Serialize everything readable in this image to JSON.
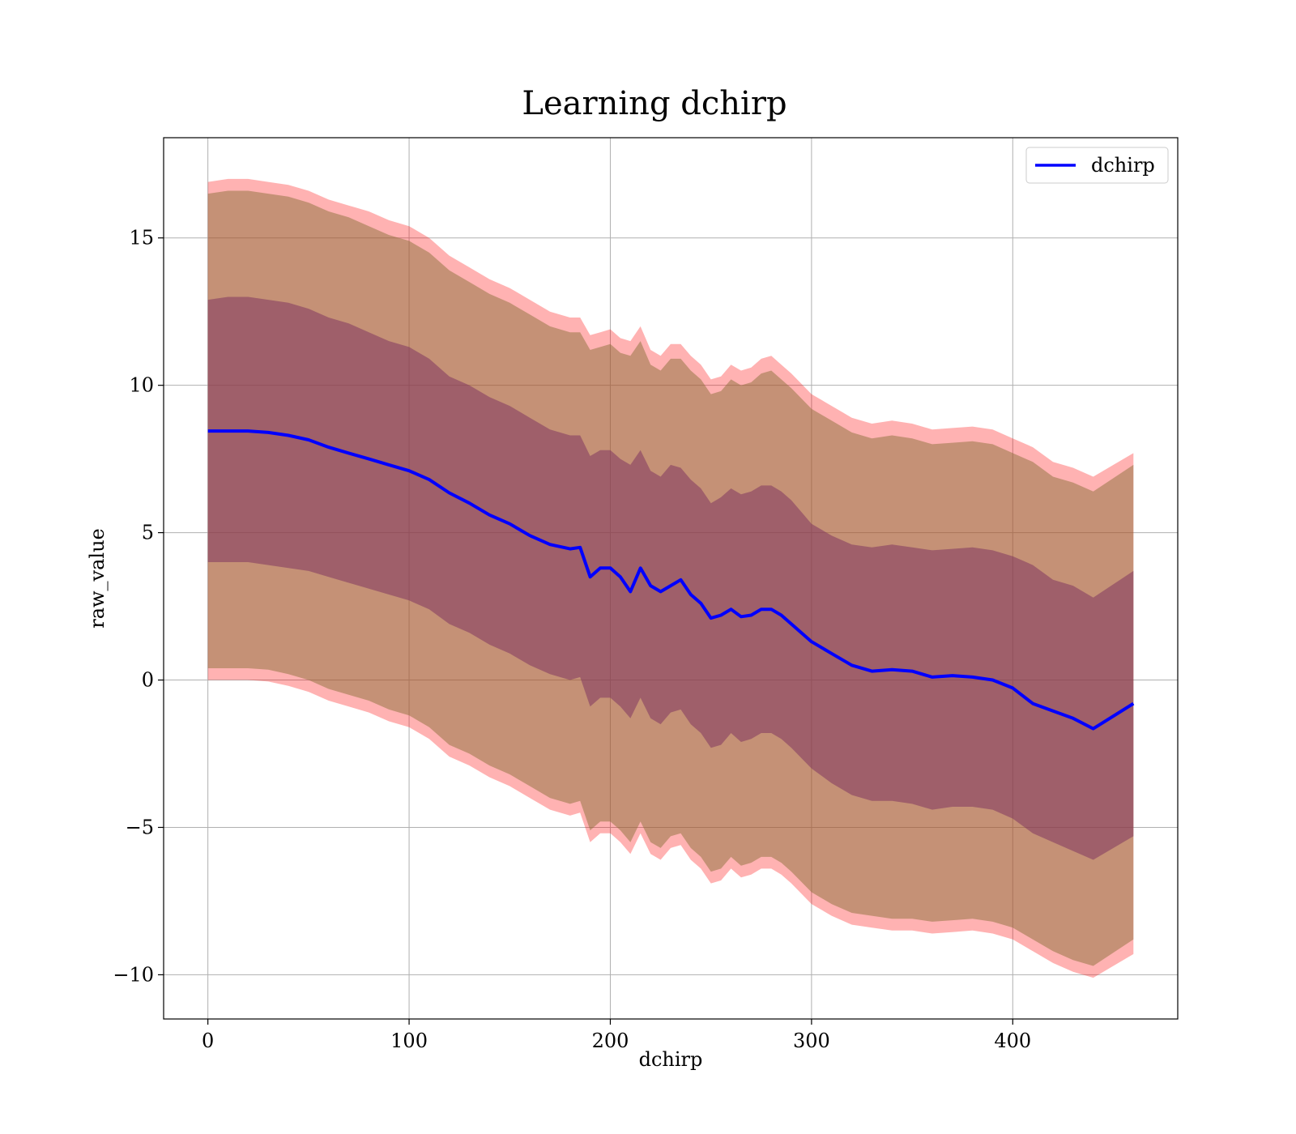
{
  "chart_data": {
    "type": "line",
    "title": "Learning dchirp",
    "xlabel": "dchirp",
    "ylabel": "raw_value",
    "xlim": [
      -22,
      482
    ],
    "ylim": [
      -11.5,
      18.4
    ],
    "xticks": [
      0,
      100,
      200,
      300,
      400
    ],
    "yticks": [
      -10,
      -5,
      0,
      5,
      10,
      15
    ],
    "xtick_labels": [
      "0",
      "100",
      "200",
      "300",
      "400"
    ],
    "ytick_labels": [
      "−10",
      "−5",
      "0",
      "5",
      "10",
      "15"
    ],
    "grid": true,
    "legend": {
      "position": "top-right",
      "entries": [
        "dchirp"
      ]
    },
    "colors": {
      "line": "#0000ff",
      "outer_band": "#ff0000",
      "outer_band_opacity": 0.3,
      "middle_band": "#8b6f3a",
      "middle_band_opacity": 0.5,
      "inner_band": "#7a2d5e",
      "inner_band_opacity": 0.5
    },
    "series": [
      {
        "name": "dchirp",
        "x": [
          0,
          10,
          20,
          30,
          40,
          50,
          60,
          70,
          80,
          90,
          100,
          110,
          120,
          130,
          140,
          150,
          160,
          170,
          180,
          185,
          190,
          195,
          200,
          205,
          210,
          215,
          220,
          225,
          230,
          235,
          240,
          245,
          250,
          255,
          260,
          265,
          270,
          275,
          280,
          285,
          290,
          300,
          310,
          320,
          330,
          340,
          350,
          360,
          370,
          380,
          390,
          400,
          410,
          420,
          430,
          440,
          460
        ],
        "y": [
          8.45,
          8.45,
          8.45,
          8.4,
          8.3,
          8.15,
          7.9,
          7.7,
          7.5,
          7.3,
          7.1,
          6.8,
          6.35,
          6.0,
          5.6,
          5.3,
          4.9,
          4.6,
          4.45,
          4.5,
          3.5,
          3.8,
          3.8,
          3.5,
          3.0,
          3.8,
          3.2,
          3.0,
          3.2,
          3.4,
          2.9,
          2.6,
          2.1,
          2.2,
          2.4,
          2.15,
          2.2,
          2.4,
          2.4,
          2.2,
          1.9,
          1.3,
          0.9,
          0.5,
          0.3,
          0.35,
          0.3,
          0.1,
          0.15,
          0.1,
          0.0,
          -0.27,
          -0.8,
          -1.05,
          -1.3,
          -1.65,
          -0.8
        ],
        "outer_upper": [
          16.9,
          17.0,
          17.0,
          16.9,
          16.8,
          16.6,
          16.3,
          16.1,
          15.9,
          15.6,
          15.4,
          15.0,
          14.4,
          14.0,
          13.6,
          13.3,
          12.9,
          12.5,
          12.3,
          12.3,
          11.7,
          11.8,
          11.9,
          11.6,
          11.5,
          12.0,
          11.2,
          11.0,
          11.4,
          11.4,
          11.0,
          10.7,
          10.2,
          10.3,
          10.7,
          10.5,
          10.6,
          10.9,
          11.0,
          10.7,
          10.4,
          9.7,
          9.3,
          8.9,
          8.7,
          8.8,
          8.7,
          8.5,
          8.55,
          8.6,
          8.5,
          8.2,
          7.9,
          7.4,
          7.2,
          6.9,
          7.7
        ],
        "middle_upper": [
          16.5,
          16.6,
          16.6,
          16.5,
          16.4,
          16.2,
          15.9,
          15.7,
          15.4,
          15.1,
          14.9,
          14.5,
          13.9,
          13.5,
          13.1,
          12.8,
          12.4,
          12.0,
          11.8,
          11.8,
          11.2,
          11.3,
          11.4,
          11.1,
          11.0,
          11.5,
          10.7,
          10.5,
          10.9,
          10.9,
          10.5,
          10.2,
          9.7,
          9.8,
          10.2,
          10.0,
          10.1,
          10.4,
          10.5,
          10.2,
          9.9,
          9.2,
          8.8,
          8.4,
          8.2,
          8.3,
          8.2,
          8.0,
          8.05,
          8.1,
          8.0,
          7.7,
          7.4,
          6.9,
          6.7,
          6.4,
          7.3
        ],
        "inner_upper": [
          12.9,
          13.0,
          13.0,
          12.9,
          12.8,
          12.6,
          12.3,
          12.1,
          11.8,
          11.5,
          11.3,
          10.9,
          10.3,
          10.0,
          9.6,
          9.3,
          8.9,
          8.5,
          8.3,
          8.3,
          7.6,
          7.8,
          7.8,
          7.5,
          7.3,
          7.8,
          7.1,
          6.9,
          7.3,
          7.2,
          6.8,
          6.5,
          6.0,
          6.2,
          6.5,
          6.3,
          6.4,
          6.6,
          6.6,
          6.4,
          6.1,
          5.3,
          4.9,
          4.6,
          4.5,
          4.6,
          4.5,
          4.4,
          4.45,
          4.5,
          4.4,
          4.2,
          3.9,
          3.4,
          3.2,
          2.8,
          3.7
        ],
        "inner_lower": [
          4.0,
          4.0,
          4.0,
          3.9,
          3.8,
          3.7,
          3.5,
          3.3,
          3.1,
          2.9,
          2.7,
          2.4,
          1.9,
          1.6,
          1.2,
          0.9,
          0.5,
          0.2,
          0.0,
          0.1,
          -0.9,
          -0.6,
          -0.6,
          -0.9,
          -1.3,
          -0.6,
          -1.3,
          -1.5,
          -1.1,
          -1.0,
          -1.5,
          -1.8,
          -2.3,
          -2.2,
          -1.8,
          -2.1,
          -2.0,
          -1.8,
          -1.8,
          -2.0,
          -2.3,
          -3.0,
          -3.5,
          -3.9,
          -4.1,
          -4.1,
          -4.2,
          -4.4,
          -4.3,
          -4.3,
          -4.4,
          -4.7,
          -5.2,
          -5.5,
          -5.8,
          -6.1,
          -5.3
        ],
        "middle_lower": [
          0.4,
          0.4,
          0.4,
          0.35,
          0.2,
          0.0,
          -0.3,
          -0.5,
          -0.7,
          -1.0,
          -1.2,
          -1.6,
          -2.2,
          -2.5,
          -2.9,
          -3.2,
          -3.6,
          -4.0,
          -4.2,
          -4.1,
          -5.1,
          -4.8,
          -4.8,
          -5.1,
          -5.5,
          -4.8,
          -5.5,
          -5.7,
          -5.3,
          -5.2,
          -5.7,
          -6.0,
          -6.5,
          -6.4,
          -6.0,
          -6.3,
          -6.2,
          -6.0,
          -6.0,
          -6.2,
          -6.5,
          -7.2,
          -7.6,
          -7.9,
          -8.0,
          -8.1,
          -8.1,
          -8.2,
          -8.15,
          -8.1,
          -8.2,
          -8.4,
          -8.8,
          -9.2,
          -9.5,
          -9.7,
          -8.8
        ],
        "outer_lower": [
          0.0,
          0.0,
          0.0,
          -0.05,
          -0.2,
          -0.4,
          -0.7,
          -0.9,
          -1.1,
          -1.4,
          -1.6,
          -2.0,
          -2.6,
          -2.9,
          -3.3,
          -3.6,
          -4.0,
          -4.4,
          -4.6,
          -4.5,
          -5.5,
          -5.2,
          -5.2,
          -5.5,
          -5.9,
          -5.2,
          -5.9,
          -6.1,
          -5.7,
          -5.6,
          -6.1,
          -6.4,
          -6.9,
          -6.8,
          -6.4,
          -6.7,
          -6.6,
          -6.4,
          -6.4,
          -6.6,
          -6.9,
          -7.6,
          -8.0,
          -8.3,
          -8.4,
          -8.5,
          -8.5,
          -8.6,
          -8.55,
          -8.5,
          -8.6,
          -8.8,
          -9.2,
          -9.6,
          -9.9,
          -10.1,
          -9.3
        ]
      }
    ]
  }
}
